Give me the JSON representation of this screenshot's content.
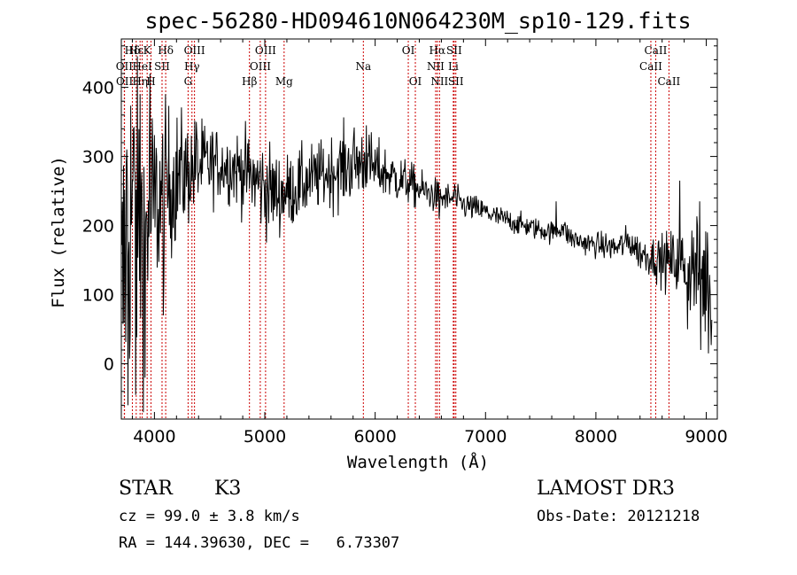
{
  "chart_data": {
    "type": "line",
    "title": "spec-56280-HD094610N064230M_sp10-129.fits",
    "xlabel": "Wavelength (Å)",
    "ylabel": "Flux (relative)",
    "xlim": [
      3700,
      9100
    ],
    "ylim": [
      -80,
      470
    ],
    "x_ticks": [
      4000,
      5000,
      6000,
      7000,
      8000,
      9000
    ],
    "y_ticks": [
      0,
      100,
      200,
      300,
      400
    ],
    "line_color": "#000000",
    "marker_color": "#cc0000",
    "spectral_lines": [
      {
        "label": "Hδ",
        "wl": 3800,
        "row": 0
      },
      {
        "label": "OII",
        "wl": 3727,
        "row": 1
      },
      {
        "label": "OII",
        "wl": 3729,
        "row": 2
      },
      {
        "label": "Hε",
        "wl": 3835,
        "row": 0
      },
      {
        "label": "HeI",
        "wl": 3889,
        "row": 1
      },
      {
        "label": "Hη",
        "wl": 3870,
        "row": 2
      },
      {
        "label": "K",
        "wl": 3934,
        "row": 0
      },
      {
        "label": "SII",
        "wl": 4069,
        "row": 1
      },
      {
        "label": "H",
        "wl": 3969,
        "row": 2
      },
      {
        "label": "Hδ",
        "wl": 4102,
        "row": 0
      },
      {
        "label": "OIII",
        "wl": 4363,
        "row": 0
      },
      {
        "label": "Hγ",
        "wl": 4340,
        "row": 1
      },
      {
        "label": "G",
        "wl": 4305,
        "row": 2
      },
      {
        "label": "OIII",
        "wl": 5007,
        "row": 0
      },
      {
        "label": "OIII",
        "wl": 4959,
        "row": 1
      },
      {
        "label": "Hβ",
        "wl": 4861,
        "row": 2
      },
      {
        "label": "Mg",
        "wl": 5175,
        "row": 2
      },
      {
        "label": "Na",
        "wl": 5893,
        "row": 1
      },
      {
        "label": "OI",
        "wl": 6300,
        "row": 0
      },
      {
        "label": "OI",
        "wl": 6364,
        "row": 2
      },
      {
        "label": "Hα",
        "wl": 6563,
        "row": 0
      },
      {
        "label": "SII",
        "wl": 6716,
        "row": 0
      },
      {
        "label": "NII",
        "wl": 6548,
        "row": 1
      },
      {
        "label": "Li",
        "wl": 6708,
        "row": 1
      },
      {
        "label": "NII",
        "wl": 6583,
        "row": 2
      },
      {
        "label": "SII",
        "wl": 6731,
        "row": 2
      },
      {
        "label": "CaII",
        "wl": 8542,
        "row": 0
      },
      {
        "label": "CaII",
        "wl": 8498,
        "row": 1
      },
      {
        "label": "CaII",
        "wl": 8662,
        "row": 2
      }
    ],
    "continuum": [
      [
        3700,
        60
      ],
      [
        3750,
        210
      ],
      [
        3800,
        230
      ],
      [
        3850,
        200
      ],
      [
        3900,
        190
      ],
      [
        3950,
        215
      ],
      [
        4000,
        230
      ],
      [
        4050,
        235
      ],
      [
        4100,
        255
      ],
      [
        4150,
        262
      ],
      [
        4200,
        270
      ],
      [
        4300,
        278
      ],
      [
        4400,
        285
      ],
      [
        4500,
        290
      ],
      [
        4600,
        288
      ],
      [
        4700,
        285
      ],
      [
        4800,
        280
      ],
      [
        4900,
        268
      ],
      [
        5000,
        255
      ],
      [
        5100,
        246
      ],
      [
        5200,
        248
      ],
      [
        5300,
        256
      ],
      [
        5400,
        265
      ],
      [
        5500,
        272
      ],
      [
        5600,
        278
      ],
      [
        5700,
        283
      ],
      [
        5800,
        290
      ],
      [
        5900,
        293
      ],
      [
        6000,
        282
      ],
      [
        6100,
        276
      ],
      [
        6200,
        268
      ],
      [
        6300,
        262
      ],
      [
        6400,
        252
      ],
      [
        6500,
        246
      ],
      [
        6600,
        240
      ],
      [
        6700,
        238
      ],
      [
        6800,
        230
      ],
      [
        6900,
        225
      ],
      [
        7000,
        220
      ],
      [
        7100,
        212
      ],
      [
        7200,
        208
      ],
      [
        7300,
        202
      ],
      [
        7400,
        198
      ],
      [
        7500,
        194
      ],
      [
        7600,
        190
      ],
      [
        7700,
        198
      ],
      [
        7750,
        185
      ],
      [
        7800,
        180
      ],
      [
        7900,
        175
      ],
      [
        8000,
        172
      ],
      [
        8100,
        170
      ],
      [
        8200,
        168
      ],
      [
        8300,
        178
      ],
      [
        8400,
        160
      ],
      [
        8500,
        155
      ],
      [
        8600,
        150
      ],
      [
        8700,
        148
      ],
      [
        8800,
        145
      ],
      [
        8900,
        140
      ],
      [
        9000,
        120
      ],
      [
        9050,
        100
      ]
    ],
    "noise_profile": [
      [
        3700,
        140
      ],
      [
        3800,
        130
      ],
      [
        4000,
        75
      ],
      [
        4100,
        60
      ],
      [
        4300,
        40
      ],
      [
        4600,
        25
      ],
      [
        5000,
        35
      ],
      [
        5200,
        28
      ],
      [
        5500,
        25
      ],
      [
        5800,
        30
      ],
      [
        6000,
        22
      ],
      [
        6300,
        16
      ],
      [
        6600,
        12
      ],
      [
        7000,
        9
      ],
      [
        7500,
        8
      ],
      [
        8000,
        9
      ],
      [
        8500,
        14
      ],
      [
        8800,
        28
      ],
      [
        9000,
        55
      ],
      [
        9050,
        60
      ]
    ],
    "features": [
      {
        "wl": 3760,
        "flux": -60
      },
      {
        "wl": 3830,
        "flux": -45
      },
      {
        "wl": 3870,
        "flux": 390
      },
      {
        "wl": 3915,
        "flux": -20
      },
      {
        "wl": 3960,
        "flux": 420
      },
      {
        "wl": 4080,
        "flux": 70
      },
      {
        "wl": 4380,
        "flux": 350
      },
      {
        "wl": 4500,
        "flux": 260
      },
      {
        "wl": 5920,
        "flux": 345
      },
      {
        "wl": 6580,
        "flux": 210
      },
      {
        "wl": 6720,
        "flux": 260
      },
      {
        "wl": 7640,
        "flux": 235
      },
      {
        "wl": 8760,
        "flux": 265
      },
      {
        "wl": 8830,
        "flux": 50
      },
      {
        "wl": 8920,
        "flux": 200
      },
      {
        "wl": 8950,
        "flux": 20
      },
      {
        "wl": 9010,
        "flux": 190
      }
    ]
  },
  "info": {
    "class_label": "STAR",
    "subclass": "K3",
    "survey": "LAMOST DR3",
    "redshift_line": "cz = 99.0 ± 3.8 km/s",
    "obs_date_line": "Obs-Date: 20121218",
    "coords_line": "RA = 144.39630, DEC =   6.73307"
  }
}
